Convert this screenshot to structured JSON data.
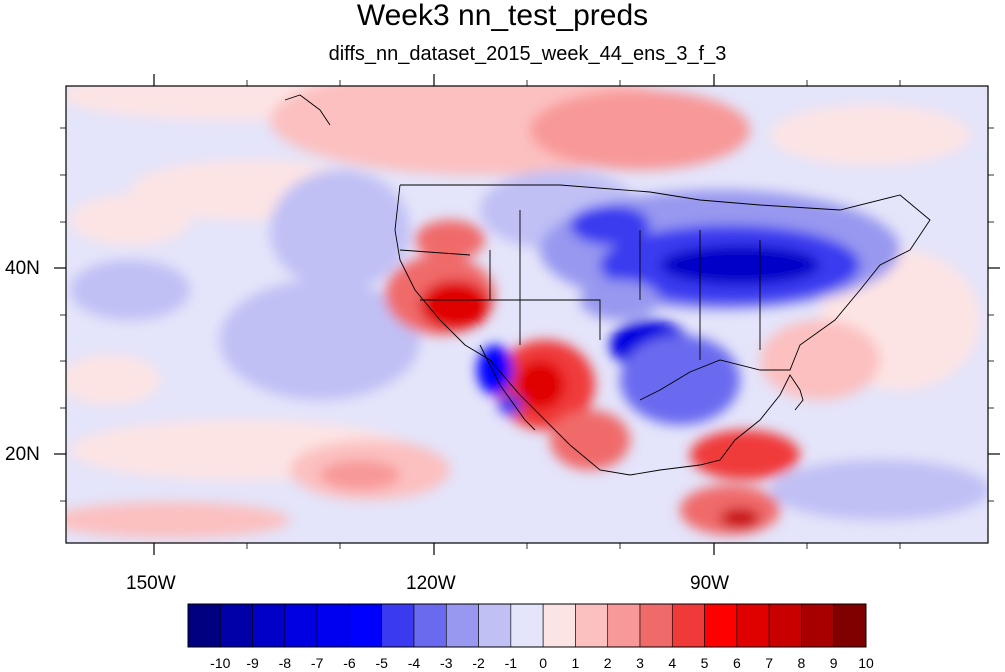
{
  "header": {
    "title": "Week3 nn_test_preds",
    "subtitle": "diffs_nn_dataset_2015_week_44_ens_3_f_3"
  },
  "map": {
    "lon_range": [
      -160,
      -60
    ],
    "lat_range": [
      11,
      61
    ],
    "lon_labels": [
      "150W",
      "120W",
      "90W"
    ],
    "lat_labels": [
      "40N",
      "20N"
    ]
  },
  "colorbar": {
    "labels": [
      "-10",
      "-9",
      "-8",
      "-7",
      "-6",
      "-5",
      "-4",
      "-3",
      "-2",
      "-1",
      "0",
      "1",
      "2",
      "3",
      "4",
      "5",
      "6",
      "7",
      "8",
      "9",
      "10"
    ],
    "colors": [
      "#000080",
      "#0000a8",
      "#0000c8",
      "#0000e0",
      "#0000f0",
      "#0000ff",
      "#3a3af0",
      "#6a6af0",
      "#9898f0",
      "#c0c0f5",
      "#e4e4fa",
      "#fde4e4",
      "#fcc0c0",
      "#f89898",
      "#f06a6a",
      "#f03a3a",
      "#ff0000",
      "#e00000",
      "#c80000",
      "#a80000",
      "#800000"
    ]
  }
}
